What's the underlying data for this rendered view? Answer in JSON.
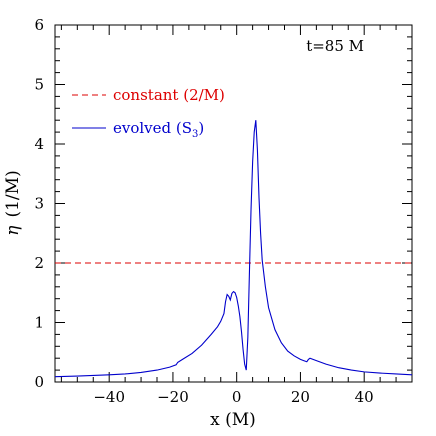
{
  "chart_data": {
    "type": "line",
    "xlabel": "x (M)",
    "ylabel_symbol": "η",
    "ylabel_unit": "(1/M)",
    "xlim": [
      -57,
      55
    ],
    "ylim": [
      0,
      6
    ],
    "x_ticks": [
      -40,
      -20,
      0,
      20,
      40
    ],
    "x_tick_labels": [
      "−40",
      "−20",
      "0",
      "20",
      "40"
    ],
    "y_ticks": [
      0,
      1,
      2,
      3,
      4,
      5,
      6
    ],
    "y_tick_labels": [
      "0",
      "1",
      "2",
      "3",
      "4",
      "5",
      "6"
    ],
    "x_minor_step": 5,
    "y_minor_step": 0.2,
    "grid": false,
    "legend_position": "top-left",
    "annotation": "t=85 M",
    "series": [
      {
        "name": "constant (2/M)",
        "legend_main": "constant (2/M)",
        "legend_sub": "",
        "legend_tail": "",
        "color": "#dd0000",
        "dashed": true,
        "x": [
          -57,
          55
        ],
        "y": [
          2,
          2
        ]
      },
      {
        "name": "evolved (S3)",
        "legend_main": "evolved (S",
        "legend_sub": "3",
        "legend_tail": ")",
        "color": "#0000cc",
        "dashed": false,
        "x": [
          -57,
          -50,
          -45,
          -40,
          -35,
          -30,
          -25,
          -21,
          -19,
          -18.5,
          -17,
          -14,
          -11,
          -8,
          -6,
          -5,
          -4,
          -3.5,
          -3,
          -2.5,
          -2,
          -1.5,
          -1,
          -0.5,
          0,
          0.5,
          1,
          1.5,
          2,
          2.5,
          3,
          3.5,
          4,
          4.5,
          5,
          5.5,
          6,
          6.5,
          7,
          7.5,
          8,
          9,
          10,
          12,
          14,
          16,
          18,
          20,
          21,
          22,
          22.5,
          23,
          25,
          28,
          32,
          36,
          40,
          45,
          50,
          55
        ],
        "y": [
          0.09,
          0.1,
          0.11,
          0.12,
          0.135,
          0.16,
          0.2,
          0.25,
          0.29,
          0.33,
          0.38,
          0.48,
          0.62,
          0.8,
          0.93,
          1.02,
          1.15,
          1.35,
          1.47,
          1.44,
          1.38,
          1.49,
          1.52,
          1.5,
          1.42,
          1.28,
          1.1,
          0.85,
          0.55,
          0.3,
          0.2,
          0.75,
          1.85,
          2.9,
          3.7,
          4.2,
          4.4,
          3.9,
          3.1,
          2.5,
          2.05,
          1.6,
          1.25,
          0.88,
          0.66,
          0.52,
          0.44,
          0.38,
          0.36,
          0.34,
          0.38,
          0.4,
          0.36,
          0.3,
          0.24,
          0.2,
          0.17,
          0.15,
          0.135,
          0.12
        ]
      }
    ]
  }
}
